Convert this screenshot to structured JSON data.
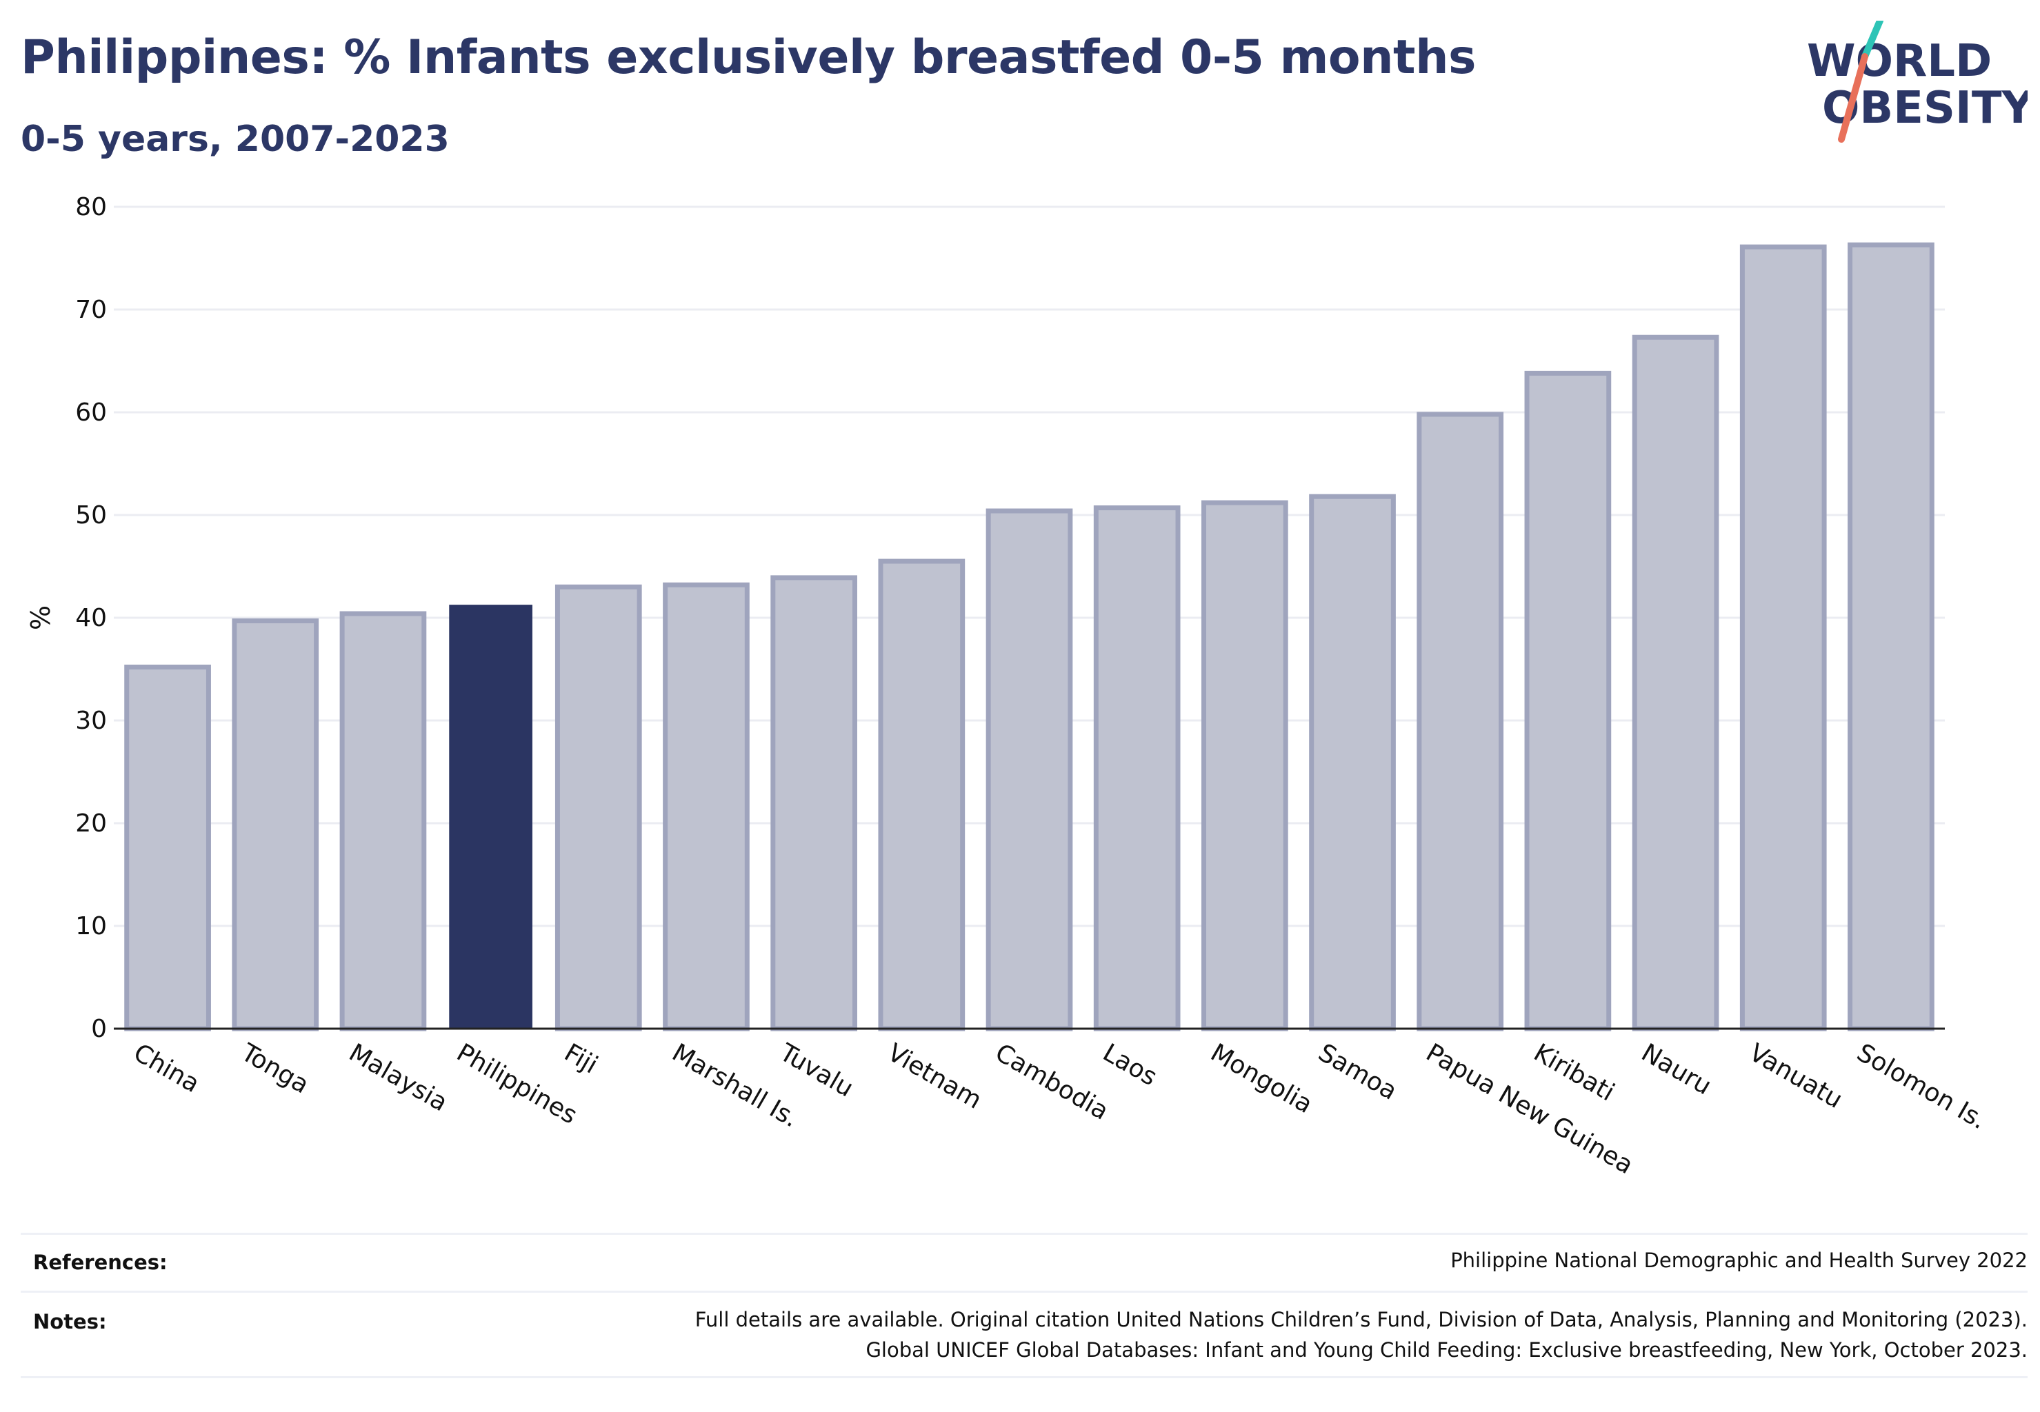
{
  "header": {
    "title": "Philippines: % Infants exclusively breastfed 0-5 months",
    "subtitle": "0-5 years, 2007-2023"
  },
  "logo": {
    "line1": "WORLD",
    "line2": "OBESITY",
    "colors": {
      "text": "#2c3766",
      "slash_top": "#2ec4b6",
      "slash_bottom": "#e8705a"
    }
  },
  "colors": {
    "highlight_bar": "#2b3562",
    "bar_fill": "#bfc2d0",
    "bar_stroke": "#9fa4bd",
    "grid": "#ebecf2",
    "axis": "#222222"
  },
  "chart_data": {
    "type": "bar",
    "title": "Philippines: % Infants exclusively breastfed 0-5 months",
    "subtitle": "0-5 years, 2007-2023",
    "xlabel": "",
    "ylabel": "%",
    "ylim": [
      0,
      80
    ],
    "yticks": [
      0,
      10,
      20,
      30,
      40,
      50,
      60,
      70,
      80
    ],
    "grid": true,
    "highlight": "Philippines",
    "categories": [
      "China",
      "Tonga",
      "Malaysia",
      "Philippines",
      "Fiji",
      "Marshall Is.",
      "Tuvalu",
      "Vietnam",
      "Cambodia",
      "Laos",
      "Mongolia",
      "Samoa",
      "Papua New Guinea",
      "Kiribati",
      "Nauru",
      "Vanuatu",
      "Solomon Is."
    ],
    "values": [
      35.2,
      39.7,
      40.4,
      41.2,
      43.0,
      43.2,
      43.9,
      45.5,
      50.4,
      50.7,
      51.2,
      51.8,
      59.8,
      63.8,
      67.3,
      76.1,
      76.3
    ]
  },
  "footer": {
    "references_label": "References:",
    "references_text": "Philippine National Demographic and Health Survey 2022",
    "notes_label": "Notes:",
    "notes_line1": "Full details are available. Original citation United Nations Children’s Fund, Division of Data, Analysis, Planning and Monitoring (2023).",
    "notes_line2": "Global UNICEF Global Databases: Infant and Young Child Feeding: Exclusive breastfeeding, New York, October 2023."
  }
}
